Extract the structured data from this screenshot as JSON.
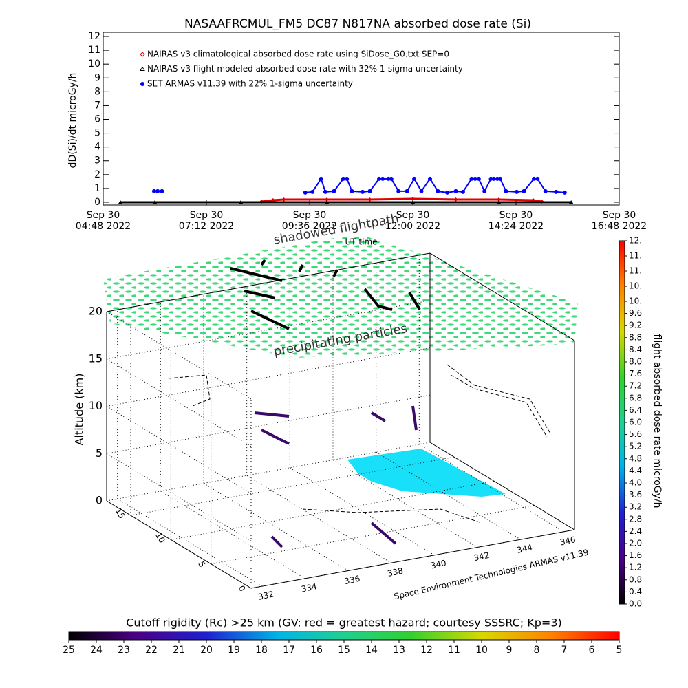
{
  "chart_data": [
    {
      "type": "line",
      "title": "NASAAFRCMUL_FM5 DC87 N817NA absorbed dose rate (Si)",
      "y_label": "dD(Si)/dt microGy/h",
      "x_label": "UT time",
      "xlim": [
        "2022-09-30 04:48",
        "2022-09-30 16:48"
      ],
      "xticks": [
        {
          "value": "2022-09-30 04:48",
          "label": "Sep 30\n04:48 2022"
        },
        {
          "value": "2022-09-30 07:12",
          "label": "Sep 30\n07:12 2022"
        },
        {
          "value": "2022-09-30 09:36",
          "label": "Sep 30\n09:36 2022"
        },
        {
          "value": "2022-09-30 12:00",
          "label": "Sep 30\n12:00 2022"
        },
        {
          "value": "2022-09-30 14:24",
          "label": "Sep 30\n14:24 2022"
        },
        {
          "value": "2022-09-30 16:48",
          "label": "Sep 30\n16:48 2022"
        }
      ],
      "ylim": [
        -0.2,
        12.3
      ],
      "yticks": [
        0,
        1,
        2,
        3,
        4,
        5,
        6,
        7,
        8,
        9,
        10,
        11,
        12
      ],
      "series": [
        {
          "name": "NAIRAS v3 climatological absorbed dose rate using SiDose_G0.txt SEP=0",
          "color": "#e00000",
          "marker": "diamond",
          "x": [
            "2022-09-30 08:29",
            "2022-09-30 08:45",
            "2022-09-30 09:00",
            "2022-09-30 10:00",
            "2022-09-30 11:00",
            "2022-09-30 12:00",
            "2022-09-30 13:00",
            "2022-09-30 14:00",
            "2022-09-30 14:48",
            "2022-09-30 15:00"
          ],
          "values": [
            0.05,
            0.15,
            0.2,
            0.2,
            0.2,
            0.25,
            0.2,
            0.2,
            0.15,
            0.05
          ]
        },
        {
          "name": "NAIRAS v3 flight modeled absorbed dose rate with 32% 1-sigma uncertainty",
          "color": "#000000",
          "marker": "triangle",
          "x": [
            "2022-09-30 05:12",
            "2022-09-30 06:00",
            "2022-09-30 08:00",
            "2022-09-30 10:00",
            "2022-09-30 12:00",
            "2022-09-30 14:00",
            "2022-09-30 15:41"
          ],
          "values": [
            0,
            0,
            0,
            0,
            0,
            0,
            0
          ]
        },
        {
          "name": "SET ARMAS v11.39 with 22% 1-sigma uncertainty",
          "color": "#0000ff",
          "marker": "circle",
          "x": [
            "2022-09-30 05:59",
            "2022-09-30 06:04",
            "2022-09-30 06:10",
            "2022-09-30 08:00",
            "2022-09-30 09:30",
            "2022-09-30 09:40",
            "2022-09-30 09:52",
            "2022-09-30 09:58",
            "2022-09-30 10:10",
            "2022-09-30 10:23",
            "2022-09-30 10:28",
            "2022-09-30 10:35",
            "2022-09-30 10:50",
            "2022-09-30 11:00",
            "2022-09-30 11:13",
            "2022-09-30 11:18",
            "2022-09-30 11:26",
            "2022-09-30 11:30",
            "2022-09-30 11:40",
            "2022-09-30 11:52",
            "2022-09-30 12:02",
            "2022-09-30 12:12",
            "2022-09-30 12:24",
            "2022-09-30 12:35",
            "2022-09-30 12:48",
            "2022-09-30 13:00",
            "2022-09-30 13:10",
            "2022-09-30 13:22",
            "2022-09-30 13:27",
            "2022-09-30 13:32",
            "2022-09-30 13:40",
            "2022-09-30 13:49",
            "2022-09-30 13:53",
            "2022-09-30 13:58",
            "2022-09-30 14:02",
            "2022-09-30 14:10",
            "2022-09-30 14:25",
            "2022-09-30 14:35",
            "2022-09-30 14:49",
            "2022-09-30 14:54",
            "2022-09-30 15:05",
            "2022-09-30 15:20",
            "2022-09-30 15:32"
          ],
          "values": [
            0.8,
            0.8,
            0.8,
            null,
            0.7,
            0.75,
            1.7,
            0.75,
            0.8,
            1.7,
            1.7,
            0.8,
            0.75,
            0.8,
            1.7,
            1.7,
            1.7,
            1.7,
            0.8,
            0.8,
            1.7,
            0.8,
            1.7,
            0.8,
            0.7,
            0.8,
            0.75,
            1.7,
            1.7,
            1.7,
            0.8,
            1.7,
            1.7,
            1.7,
            1.7,
            0.8,
            0.75,
            0.8,
            1.7,
            1.7,
            0.8,
            0.75,
            0.7
          ]
        }
      ]
    },
    {
      "type": "scatter3d",
      "annotations": [
        "shadowed flightpath",
        "precipitating particles"
      ],
      "credit": "Space Environment Technologies ARMAS v11.39",
      "z_label": "Altitude (km)",
      "xlim": [
        331.5,
        346.5
      ],
      "xticks": [
        332,
        334,
        336,
        338,
        340,
        342,
        344,
        346
      ],
      "ylim": [
        0,
        18
      ],
      "yticks": [
        0,
        5,
        10,
        15
      ],
      "zlim": [
        0,
        20
      ],
      "zticks": [
        0,
        5,
        10,
        15,
        20
      ]
    },
    {
      "type": "colorbar",
      "orientation": "vertical",
      "label": "flight absorbed dose rate microGy/h",
      "lim": [
        0,
        12
      ],
      "ticks": [
        {
          "value": 0,
          "label": "0.0"
        },
        0.4,
        0.8,
        1.2,
        1.6,
        {
          "value": 2,
          "label": "2.0"
        },
        2.4,
        2.8,
        3.2,
        3.6,
        {
          "value": 4,
          "label": "4.0"
        },
        4.4,
        4.8,
        5.2,
        5.6,
        {
          "value": 6,
          "label": "6.0"
        },
        6.4,
        6.8,
        7.2,
        7.6,
        {
          "value": 8,
          "label": "8.0"
        },
        8.4,
        8.8,
        9.2,
        9.6,
        {
          "value": 10,
          "label": "10."
        },
        {
          "value": 10.5,
          "label": "10."
        },
        {
          "value": 11,
          "label": "11."
        },
        {
          "value": 11.5,
          "label": "11."
        },
        {
          "value": 12,
          "label": "12."
        }
      ]
    },
    {
      "type": "colorbar",
      "orientation": "horizontal",
      "title": "Cutoff rigidity (Rc) >25 km (GV: red = greatest hazard; courtesy SSSRC; Kp=3)",
      "lim": [
        25,
        5
      ],
      "ticks": [
        25,
        24,
        23,
        22,
        21,
        20,
        19,
        18,
        17,
        16,
        15,
        14,
        13,
        12,
        11,
        10,
        9,
        8,
        7,
        6,
        5
      ]
    }
  ]
}
